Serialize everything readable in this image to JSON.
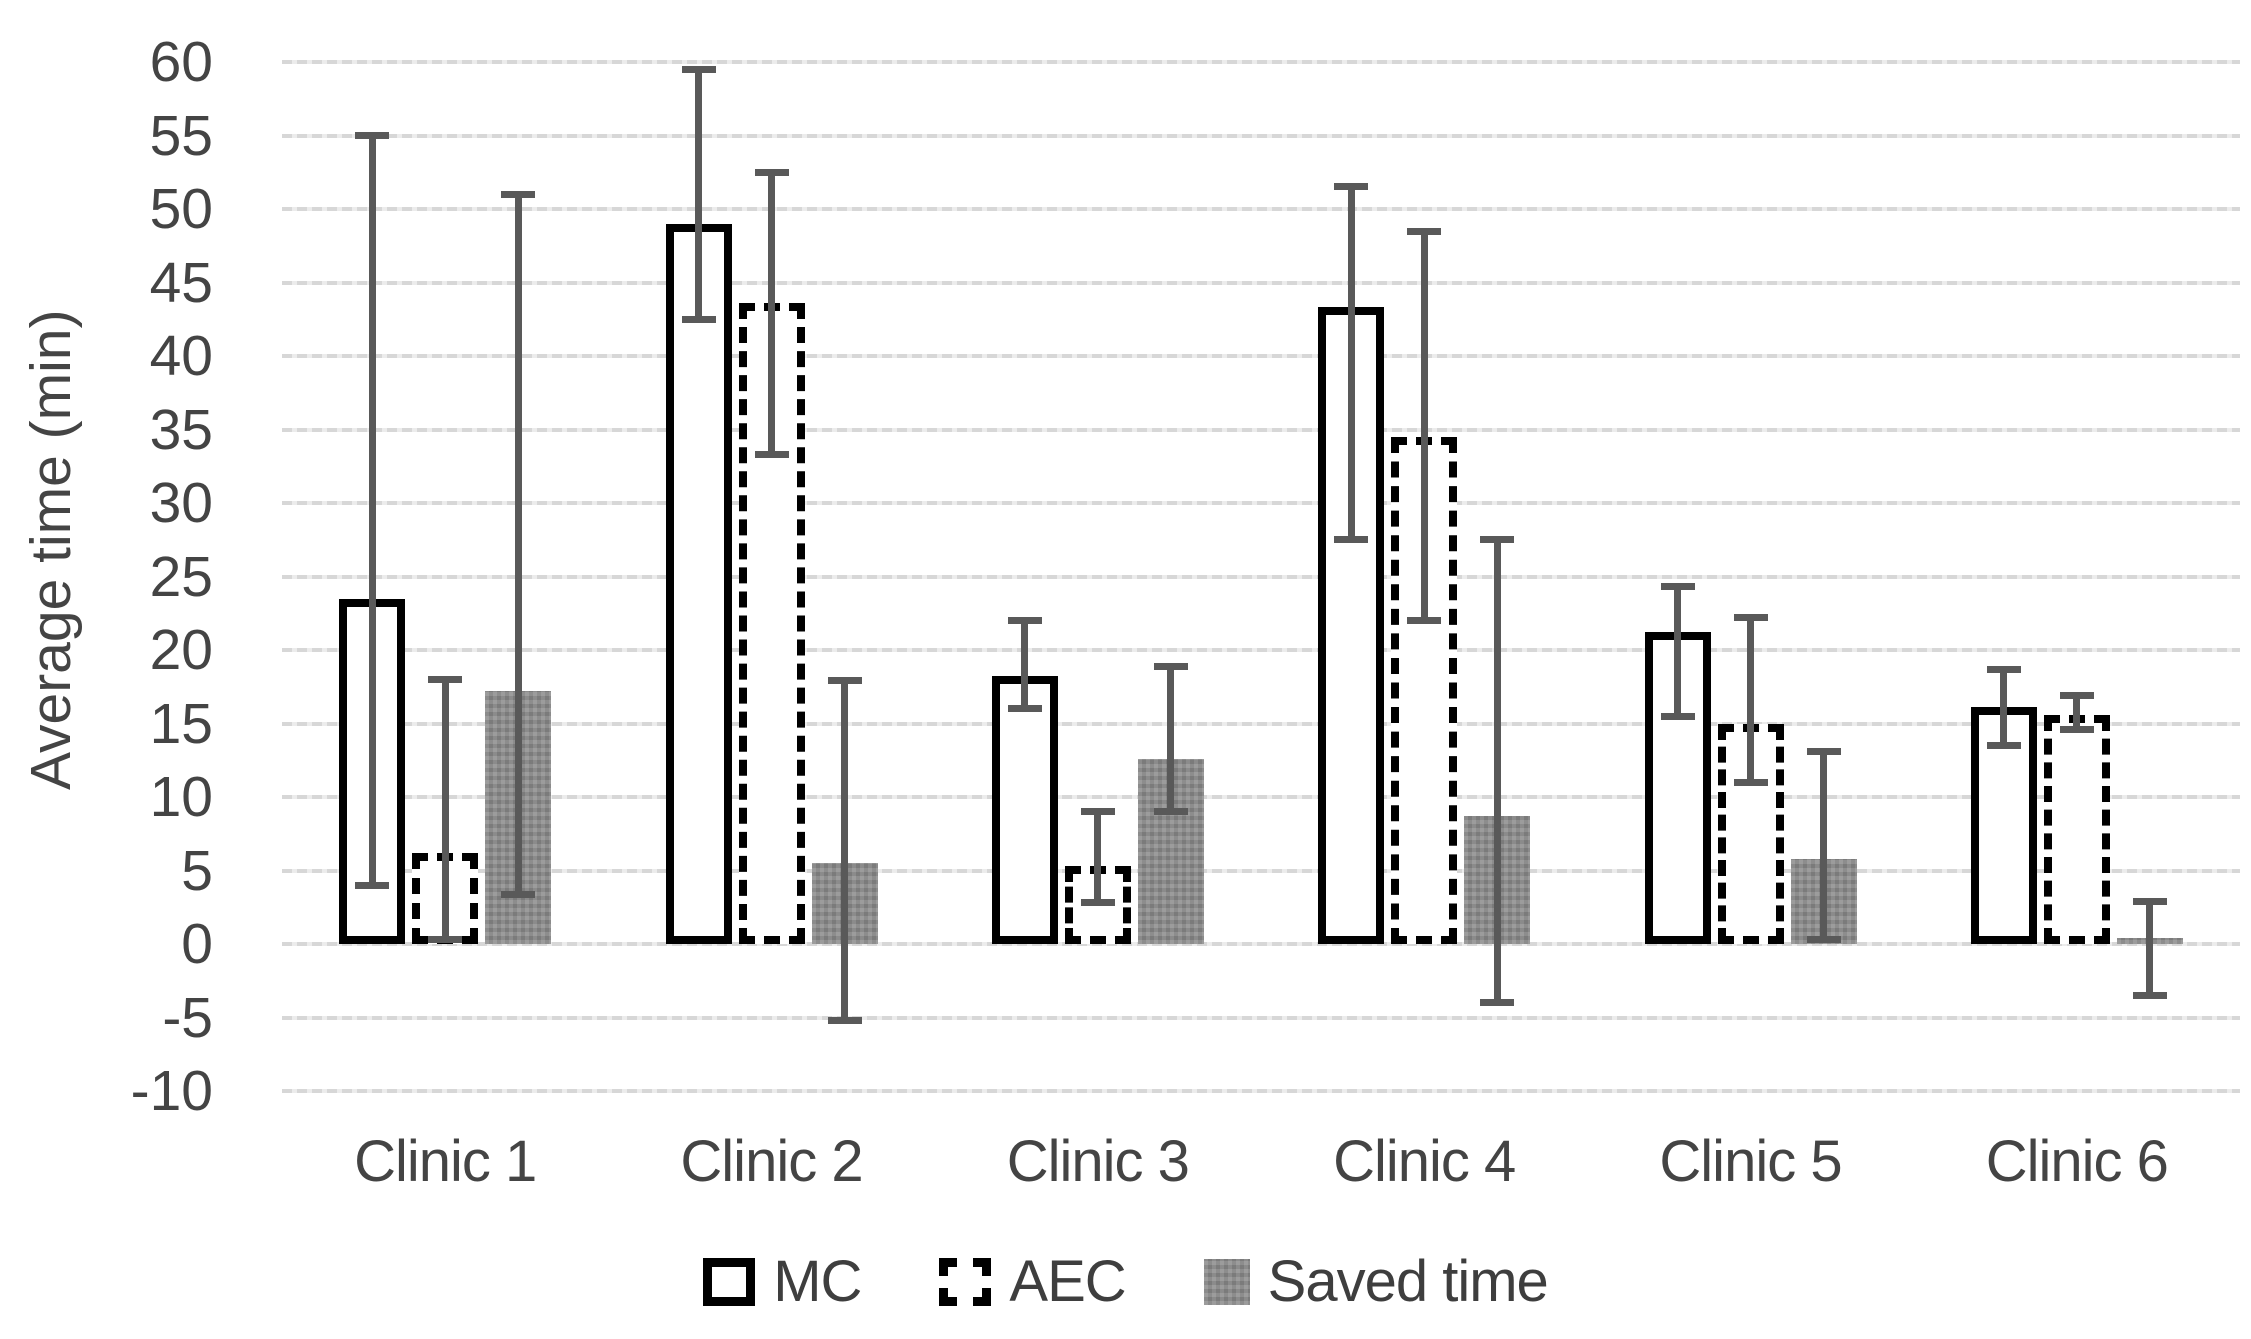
{
  "chart_data": {
    "type": "bar",
    "title": "",
    "xlabel": "",
    "ylabel": "Average time (min)",
    "ylim": [
      -10,
      60
    ],
    "ytick_step": 5,
    "yticks": [
      60,
      55,
      50,
      45,
      40,
      35,
      30,
      25,
      20,
      15,
      10,
      5,
      0,
      -5,
      -10
    ],
    "grid": true,
    "legend_position": "bottom",
    "categories": [
      "Clinic 1",
      "Clinic 2",
      "Clinic 3",
      "Clinic 4",
      "Clinic 5",
      "Clinic 6"
    ],
    "series": [
      {
        "name": "MC",
        "style": "open-solid-border",
        "values": [
          23.5,
          49.0,
          18.2,
          43.3,
          21.2,
          16.1
        ],
        "err_low": [
          4.0,
          42.5,
          16.0,
          27.5,
          15.5,
          13.5
        ],
        "err_high": [
          55.0,
          59.5,
          22.0,
          51.5,
          24.3,
          18.7
        ]
      },
      {
        "name": "AEC",
        "style": "open-dashed-border",
        "values": [
          6.2,
          43.6,
          5.3,
          34.5,
          15.0,
          15.6
        ],
        "err_low": [
          0.3,
          33.3,
          2.8,
          22.0,
          11.0,
          14.6
        ],
        "err_high": [
          18.0,
          52.5,
          9.0,
          48.5,
          22.2,
          16.9
        ]
      },
      {
        "name": "Saved time",
        "style": "filled-gray",
        "values": [
          17.2,
          5.5,
          12.6,
          8.7,
          5.8,
          0.4
        ],
        "err_low": [
          3.4,
          -5.2,
          9.0,
          -4.0,
          0.3,
          -3.5
        ],
        "err_high": [
          51.0,
          17.9,
          18.9,
          27.5,
          13.1,
          2.9
        ]
      }
    ],
    "colors": {
      "background": "#ffffff",
      "bar_border": "#000000",
      "open_bar_fill": "#ffffff",
      "saved_fill": "#8b8b8b",
      "error_bar": "#595959",
      "gridline": "#d9d9d9",
      "text": "#444444"
    }
  }
}
